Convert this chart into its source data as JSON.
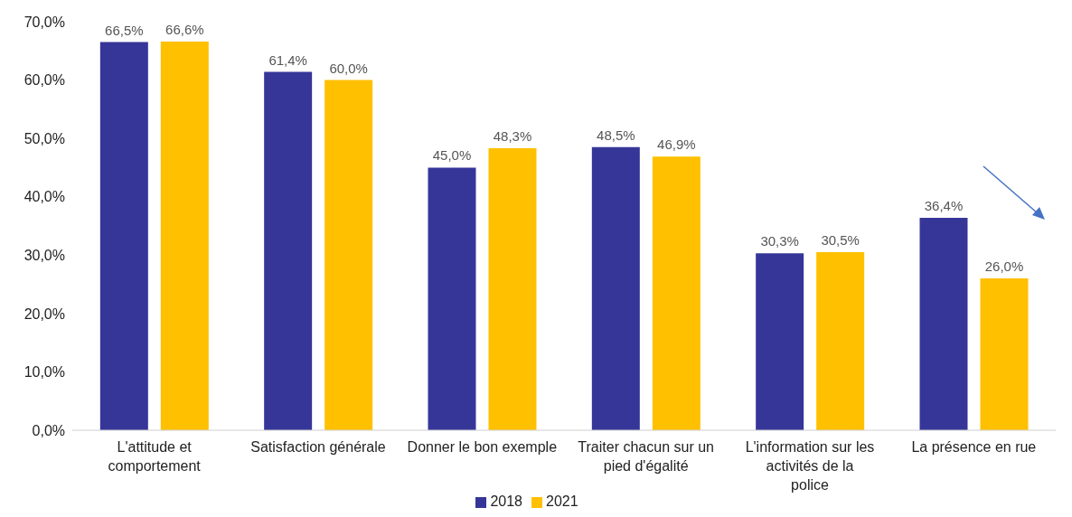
{
  "chart_data": {
    "type": "bar",
    "categories": [
      "L'attitude et comportement",
      "Satisfaction générale",
      "Donner le bon exemple",
      "Traiter chacun sur un pied d'égalité",
      "L'information sur les activités de la police",
      "La présence en rue"
    ],
    "series": [
      {
        "name": "2018",
        "color": "#363699",
        "values": [
          66.5,
          61.4,
          45.0,
          48.5,
          30.3,
          36.4
        ],
        "value_labels": [
          "66,5%",
          "61,4%",
          "45,0%",
          "48,5%",
          "30,3%",
          "36,4%"
        ]
      },
      {
        "name": "2021",
        "color": "#ffc000",
        "values": [
          66.6,
          60.0,
          48.3,
          46.9,
          30.5,
          26.0
        ],
        "value_labels": [
          "66,6%",
          "60,0%",
          "48,3%",
          "46,9%",
          "30,5%",
          "26,0%"
        ]
      }
    ],
    "ylim": [
      0,
      70
    ],
    "yticks": [
      {
        "value": 0,
        "label": "0,0%"
      },
      {
        "value": 10,
        "label": "10,0%"
      },
      {
        "value": 20,
        "label": "20,0%"
      },
      {
        "value": 30,
        "label": "30,0%"
      },
      {
        "value": 40,
        "label": "40,0%"
      },
      {
        "value": 50,
        "label": "50,0%"
      },
      {
        "value": 60,
        "label": "60,0%"
      },
      {
        "value": 70,
        "label": "70,0%"
      }
    ],
    "grid": false,
    "legend": "bottom"
  }
}
